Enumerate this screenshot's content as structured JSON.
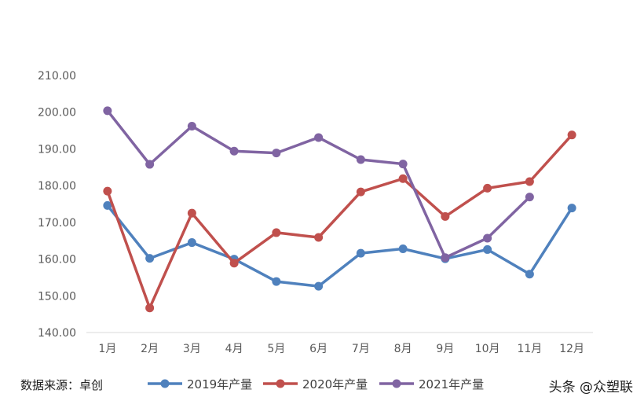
{
  "source_text": "数据来源：卓创",
  "watermark": "头条 @众塑联",
  "chart_data": {
    "type": "line",
    "title": "",
    "xlabel": "",
    "ylabel": "",
    "categories": [
      "1月",
      "2月",
      "3月",
      "4月",
      "5月",
      "6月",
      "7月",
      "8月",
      "9月",
      "10月",
      "11月",
      "12月"
    ],
    "ylim": [
      140,
      210
    ],
    "y_ticks": [
      "140.00",
      "150.00",
      "160.00",
      "170.00",
      "180.00",
      "190.00",
      "200.00",
      "210.00"
    ],
    "grid": false,
    "legend_position": "bottom",
    "series": [
      {
        "name": "2019年产量",
        "color": "#4f81bd",
        "values": [
          174.6,
          160.2,
          164.5,
          160.0,
          153.9,
          152.6,
          161.6,
          162.8,
          160.1,
          162.6,
          155.9,
          173.9
        ]
      },
      {
        "name": "2020年产量",
        "color": "#c0504d",
        "values": [
          178.5,
          146.7,
          172.5,
          158.9,
          167.2,
          165.9,
          178.3,
          181.9,
          171.6,
          179.3,
          181.1,
          193.8
        ]
      },
      {
        "name": "2021年产量",
        "color": "#8064a2",
        "values": [
          200.4,
          185.8,
          196.2,
          189.4,
          188.9,
          193.1,
          187.1,
          185.9,
          160.4,
          165.7,
          176.9,
          null
        ]
      }
    ]
  }
}
